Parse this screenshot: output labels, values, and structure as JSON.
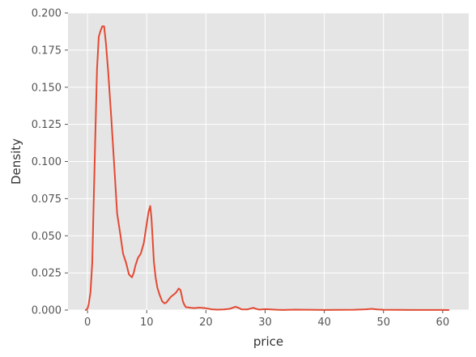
{
  "chart_data": {
    "type": "line",
    "title": "",
    "xlabel": "price",
    "ylabel": "Density",
    "xlim": [
      -3.3,
      64.4
    ],
    "ylim": [
      0,
      0.2
    ],
    "xticks": [
      0,
      10,
      20,
      30,
      40,
      50,
      60
    ],
    "yticks": [
      0.0,
      0.025,
      0.05,
      0.075,
      0.1,
      0.125,
      0.15,
      0.175,
      0.2
    ],
    "ytick_labels": [
      "0.000",
      "0.025",
      "0.050",
      "0.075",
      "0.100",
      "0.125",
      "0.150",
      "0.175",
      "0.200"
    ],
    "grid": true,
    "legend": "none",
    "colors": {
      "background": "#e5e5e5",
      "grid": "#ffffff",
      "line": "#e24a33"
    },
    "series": [
      {
        "x": [
          -0.3,
          0.0,
          0.2,
          0.5,
          0.8,
          1.0,
          1.3,
          1.6,
          1.9,
          2.2,
          2.5,
          2.8,
          3.1,
          3.5,
          4.0,
          4.5,
          5.0,
          5.5,
          6.0,
          6.5,
          7.0,
          7.5,
          7.8,
          8.1,
          8.5,
          9.0,
          9.5,
          10.0,
          10.3,
          10.6,
          10.8,
          11.0,
          11.2,
          11.5,
          11.8,
          12.2,
          12.6,
          13.0,
          13.3,
          13.7,
          14.1,
          14.6,
          15.0,
          15.4,
          15.7,
          15.9,
          16.1,
          16.3,
          16.6,
          17.0,
          17.5,
          18.0,
          18.5,
          19.0,
          19.5,
          20.0,
          21.0,
          22.0,
          23.0,
          24.0,
          24.5,
          25.0,
          25.5,
          26.0,
          27.0,
          27.5,
          28.0,
          28.5,
          29.0,
          30.0,
          31.0,
          32.0,
          33.0,
          35.0,
          37.0,
          40.0,
          45.0,
          47.0,
          48.0,
          49.0,
          50.0,
          55.0,
          60.0,
          61.0
        ],
        "y": [
          0.0,
          0.001,
          0.004,
          0.012,
          0.032,
          0.066,
          0.115,
          0.162,
          0.184,
          0.188,
          0.191,
          0.191,
          0.18,
          0.16,
          0.13,
          0.098,
          0.065,
          0.052,
          0.038,
          0.032,
          0.024,
          0.022,
          0.025,
          0.03,
          0.035,
          0.038,
          0.045,
          0.058,
          0.066,
          0.07,
          0.062,
          0.048,
          0.033,
          0.022,
          0.015,
          0.01,
          0.006,
          0.0045,
          0.005,
          0.007,
          0.009,
          0.0105,
          0.012,
          0.0145,
          0.0135,
          0.01,
          0.006,
          0.004,
          0.002,
          0.0018,
          0.0015,
          0.0013,
          0.0015,
          0.0016,
          0.0014,
          0.0012,
          0.0005,
          0.0003,
          0.0004,
          0.0008,
          0.0015,
          0.0022,
          0.0015,
          0.0005,
          0.0004,
          0.001,
          0.0015,
          0.0008,
          0.0003,
          0.0006,
          0.0004,
          0.0002,
          0.0001,
          0.0003,
          0.0002,
          0.0001,
          0.0002,
          0.0005,
          0.0008,
          0.0004,
          0.0002,
          0.0001,
          0.0001,
          0.0
        ]
      }
    ]
  }
}
